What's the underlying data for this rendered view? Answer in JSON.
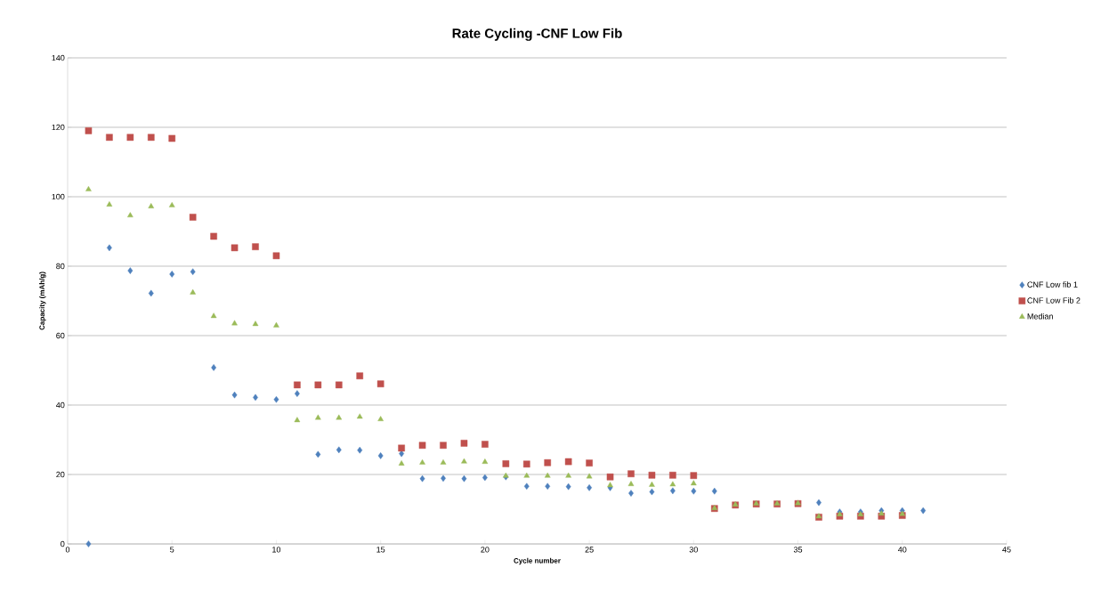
{
  "chart_data": {
    "type": "scatter",
    "title": "Rate Cycling -CNF Low Fib",
    "xlabel": "Cycle number",
    "ylabel": "Capacity (mAh/g)",
    "x": [
      1,
      2,
      3,
      4,
      5,
      6,
      7,
      8,
      9,
      10,
      11,
      12,
      13,
      14,
      15,
      16,
      17,
      18,
      19,
      20,
      21,
      22,
      23,
      24,
      25,
      26,
      27,
      28,
      29,
      30,
      31,
      32,
      33,
      34,
      35,
      36,
      37,
      38,
      39,
      40,
      41
    ],
    "series": [
      {
        "name": "CNF Low fib 1",
        "color": "#4f81bd",
        "marker": "diamond",
        "values": [
          0,
          85.3,
          78.7,
          72.2,
          77.7,
          78.4,
          50.8,
          42.9,
          42.2,
          41.6,
          43.3,
          25.8,
          27.1,
          27.0,
          25.4,
          26.0,
          18.8,
          18.9,
          18.8,
          19.1,
          19.3,
          16.6,
          16.6,
          16.5,
          16.2,
          16.2,
          14.6,
          15.0,
          15.3,
          15.2,
          15.2,
          null,
          null,
          null,
          null,
          11.9,
          9.2,
          9.2,
          9.6,
          9.6,
          9.6
        ]
      },
      {
        "name": "CNF Low Fib 2",
        "color": "#c0504d",
        "marker": "square",
        "values": [
          119,
          117.1,
          117.1,
          117.1,
          116.8,
          94.1,
          88.6,
          85.3,
          85.6,
          83.0,
          45.8,
          45.8,
          45.8,
          48.4,
          46.1,
          27.6,
          28.4,
          28.4,
          29.0,
          28.7,
          23.1,
          23.0,
          23.4,
          23.7,
          23.3,
          19.3,
          20.2,
          19.8,
          19.8,
          19.7,
          10.2,
          11.2,
          11.5,
          11.5,
          11.6,
          7.7,
          8.0,
          8.0,
          8.0,
          8.2,
          null
        ]
      },
      {
        "name": "Median",
        "color": "#9bbb59",
        "marker": "triangle",
        "values": [
          102.1,
          97.7,
          94.6,
          97.2,
          97.5,
          72.4,
          65.6,
          63.5,
          63.3,
          62.9,
          35.6,
          36.3,
          36.3,
          36.6,
          35.9,
          23.1,
          23.4,
          23.4,
          23.7,
          23.6,
          19.6,
          19.6,
          19.6,
          19.6,
          19.4,
          16.9,
          17.2,
          17.0,
          17.1,
          17.4,
          10.3,
          11.3,
          11.6,
          11.6,
          11.7,
          7.9,
          8.5,
          8.5,
          8.7,
          8.6,
          null
        ]
      }
    ],
    "xlim": [
      0,
      45
    ],
    "xticks": [
      0,
      5,
      10,
      15,
      20,
      25,
      30,
      35,
      40,
      45
    ],
    "ylim": [
      0,
      140
    ],
    "yticks": [
      0,
      20,
      40,
      60,
      80,
      100,
      120,
      140
    ],
    "grid": "y",
    "legend": "right"
  }
}
